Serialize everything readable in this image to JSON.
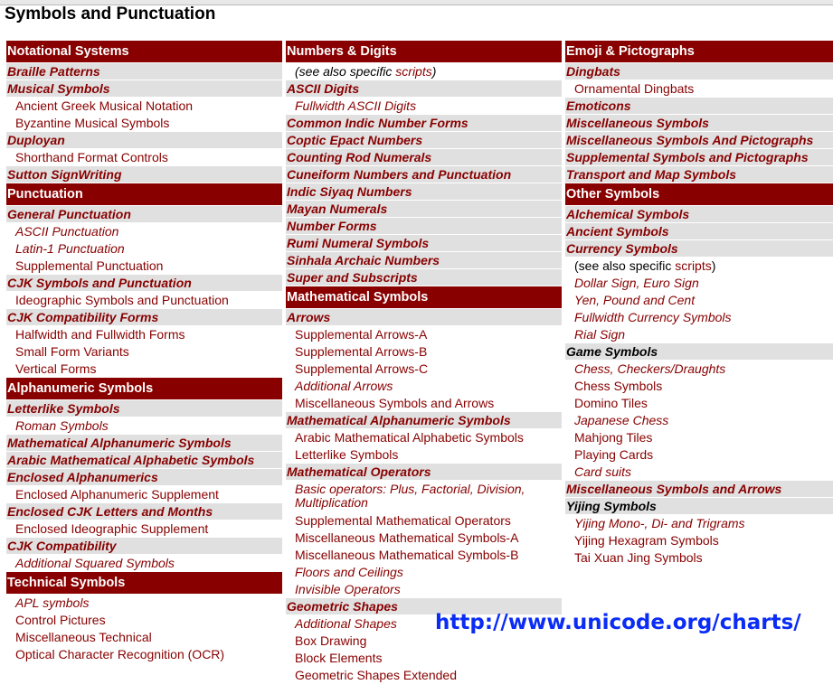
{
  "page_title": "Symbols and Punctuation",
  "overlay_url": "http://www.unicode.org/charts/",
  "colors": {
    "header_bg": "#880000",
    "group_bg": "#e0e0e0",
    "link": "#880000",
    "url_overlay": "#0a2cf5"
  },
  "columns": [
    [
      {
        "t": "h",
        "label": "Notational Systems"
      },
      {
        "t": "g",
        "label": "Braille Patterns"
      },
      {
        "t": "g",
        "label": "Musical Symbols"
      },
      {
        "t": "i",
        "label": "Ancient Greek Musical Notation"
      },
      {
        "t": "i",
        "label": "Byzantine Musical Symbols"
      },
      {
        "t": "g",
        "label": "Duployan"
      },
      {
        "t": "i",
        "label": "Shorthand Format Controls"
      },
      {
        "t": "g",
        "label": "Sutton SignWriting"
      },
      {
        "t": "h",
        "label": "Punctuation"
      },
      {
        "t": "g",
        "label": "General Punctuation"
      },
      {
        "t": "ii",
        "label": "ASCII Punctuation"
      },
      {
        "t": "ii",
        "label": "Latin-1 Punctuation"
      },
      {
        "t": "i",
        "label": "Supplemental Punctuation"
      },
      {
        "t": "g",
        "label": "CJK Symbols and Punctuation"
      },
      {
        "t": "i",
        "label": "Ideographic Symbols and Punctuation"
      },
      {
        "t": "g",
        "label": "CJK Compatibility Forms"
      },
      {
        "t": "i",
        "label": "Halfwidth and Fullwidth Forms"
      },
      {
        "t": "i",
        "label": "Small Form Variants"
      },
      {
        "t": "i",
        "label": "Vertical Forms"
      },
      {
        "t": "h",
        "label": "Alphanumeric Symbols"
      },
      {
        "t": "g",
        "label": "Letterlike Symbols"
      },
      {
        "t": "ii",
        "label": "Roman Symbols"
      },
      {
        "t": "g",
        "label": "Mathematical Alphanumeric Symbols"
      },
      {
        "t": "g",
        "label": "Arabic Mathematical Alphabetic Symbols"
      },
      {
        "t": "g",
        "label": "Enclosed Alphanumerics"
      },
      {
        "t": "i",
        "label": "Enclosed Alphanumeric Supplement"
      },
      {
        "t": "g",
        "label": "Enclosed CJK Letters and Months"
      },
      {
        "t": "i",
        "label": "Enclosed Ideographic Supplement"
      },
      {
        "t": "g",
        "label": "CJK Compatibility"
      },
      {
        "t": "ii",
        "label": "Additional Squared Symbols"
      },
      {
        "t": "h",
        "label": "Technical Symbols"
      },
      {
        "t": "ii",
        "label": "APL symbols"
      },
      {
        "t": "i",
        "label": "Control Pictures"
      },
      {
        "t": "i",
        "label": "Miscellaneous Technical"
      },
      {
        "t": "i",
        "label": "Optical Character Recognition (OCR)"
      }
    ],
    [
      {
        "t": "h",
        "label": "Numbers & Digits"
      },
      {
        "t": "note",
        "italic": true,
        "label": "(see also specific ",
        "link": "scripts",
        "suffix": ")"
      },
      {
        "t": "g",
        "label": "ASCII Digits"
      },
      {
        "t": "ii",
        "label": "Fullwidth ASCII Digits"
      },
      {
        "t": "g",
        "label": "Common Indic Number Forms"
      },
      {
        "t": "g",
        "label": "Coptic Epact Numbers"
      },
      {
        "t": "g",
        "label": "Counting Rod Numerals"
      },
      {
        "t": "g",
        "label": "Cuneiform Numbers and Punctuation"
      },
      {
        "t": "g",
        "label": "Indic Siyaq Numbers"
      },
      {
        "t": "g",
        "label": "Mayan Numerals"
      },
      {
        "t": "g",
        "label": "Number Forms"
      },
      {
        "t": "g",
        "label": "Rumi Numeral Symbols"
      },
      {
        "t": "g",
        "label": "Sinhala Archaic Numbers"
      },
      {
        "t": "g",
        "label": "Super and Subscripts"
      },
      {
        "t": "h",
        "label": "Mathematical Symbols"
      },
      {
        "t": "g",
        "label": "Arrows"
      },
      {
        "t": "i",
        "label": "Supplemental Arrows-A"
      },
      {
        "t": "i",
        "label": "Supplemental Arrows-B"
      },
      {
        "t": "i",
        "label": "Supplemental Arrows-C"
      },
      {
        "t": "ii",
        "label": "Additional Arrows"
      },
      {
        "t": "i",
        "label": "Miscellaneous Symbols and Arrows"
      },
      {
        "t": "g",
        "label": "Mathematical Alphanumeric Symbols"
      },
      {
        "t": "i",
        "label": "Arabic Mathematical Alphabetic Symbols"
      },
      {
        "t": "i",
        "label": "Letterlike Symbols"
      },
      {
        "t": "g",
        "label": "Mathematical Operators"
      },
      {
        "t": "ii",
        "two": true,
        "label": "Basic operators: Plus, Factorial, Division, Multiplication"
      },
      {
        "t": "i",
        "label": "Supplemental Mathematical Operators"
      },
      {
        "t": "i",
        "label": "Miscellaneous Mathematical Symbols-A"
      },
      {
        "t": "i",
        "label": "Miscellaneous Mathematical Symbols-B"
      },
      {
        "t": "ii",
        "label": "Floors and Ceilings"
      },
      {
        "t": "ii",
        "label": "Invisible Operators"
      },
      {
        "t": "g",
        "label": "Geometric Shapes"
      },
      {
        "t": "ii",
        "label": "Additional Shapes"
      },
      {
        "t": "i",
        "label": "Box Drawing"
      },
      {
        "t": "i",
        "label": "Block Elements"
      },
      {
        "t": "i",
        "label": "Geometric Shapes Extended"
      }
    ],
    [
      {
        "t": "h",
        "label": "Emoji & Pictographs"
      },
      {
        "t": "g",
        "label": "Dingbats"
      },
      {
        "t": "i",
        "label": "Ornamental Dingbats"
      },
      {
        "t": "g",
        "label": "Emoticons"
      },
      {
        "t": "g",
        "label": "Miscellaneous Symbols"
      },
      {
        "t": "g",
        "label": "Miscellaneous Symbols And Pictographs"
      },
      {
        "t": "g",
        "label": "Supplemental Symbols and Pictographs"
      },
      {
        "t": "g",
        "label": "Transport and Map Symbols"
      },
      {
        "t": "h",
        "label": "Other Symbols"
      },
      {
        "t": "g",
        "label": "Alchemical Symbols"
      },
      {
        "t": "g",
        "label": "Ancient Symbols"
      },
      {
        "t": "g",
        "label": "Currency Symbols"
      },
      {
        "t": "note",
        "italic": false,
        "label": "(see also specific ",
        "link": "scripts",
        "suffix": ")"
      },
      {
        "t": "ii",
        "label": "Dollar Sign, Euro Sign"
      },
      {
        "t": "ii",
        "label": "Yen, Pound and Cent"
      },
      {
        "t": "ii",
        "label": "Fullwidth Currency Symbols"
      },
      {
        "t": "ii",
        "label": "Rial Sign"
      },
      {
        "t": "gb",
        "label": "Game Symbols"
      },
      {
        "t": "ii",
        "label": "Chess, Checkers/Draughts"
      },
      {
        "t": "i",
        "label": "Chess Symbols"
      },
      {
        "t": "i",
        "label": "Domino Tiles"
      },
      {
        "t": "ii",
        "label": "Japanese Chess"
      },
      {
        "t": "i",
        "label": "Mahjong Tiles"
      },
      {
        "t": "i",
        "label": "Playing Cards"
      },
      {
        "t": "ii",
        "label": "Card suits"
      },
      {
        "t": "g",
        "label": "Miscellaneous Symbols and Arrows"
      },
      {
        "t": "gb",
        "label": "Yijing Symbols"
      },
      {
        "t": "ii",
        "label": "Yijing Mono-, Di- and Trigrams"
      },
      {
        "t": "i",
        "label": "Yijing Hexagram Symbols"
      },
      {
        "t": "i",
        "label": "Tai Xuan Jing Symbols"
      }
    ]
  ]
}
